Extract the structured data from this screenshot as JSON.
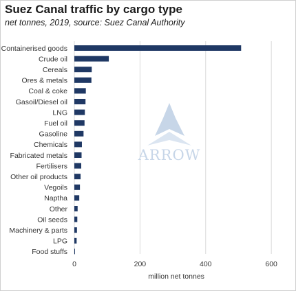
{
  "title": "Suez Canal traffic by cargo type",
  "subtitle": "net tonnes, 2019, source: Suez Canal Authority",
  "watermark": "ARROW",
  "colors": {
    "bar": "#1f3864",
    "grid": "#d9d9d9",
    "watermark": "#c7d6e8"
  },
  "chart_data": {
    "type": "bar",
    "orientation": "horizontal",
    "title": "Suez Canal traffic by cargo type",
    "subtitle": "net tonnes, 2019, source: Suez Canal Authority",
    "xlabel": "million net tonnes",
    "ylabel": "",
    "xlim": [
      0,
      650
    ],
    "xticks": [
      0,
      200,
      400,
      600
    ],
    "grid": true,
    "legend": "none",
    "categories": [
      "Containerised goods",
      "Crude oil",
      "Cereals",
      "Ores & metals",
      "Coal & coke",
      "Gasoil/Diesel oil",
      "LNG",
      "Fuel oil",
      "Gasoline",
      "Chemicals",
      "Fabricated metals",
      "Fertilisers",
      "Other oil products",
      "Vegoils",
      "Naptha",
      "Other",
      "Oil seeds",
      "Machinery & parts",
      "LPG",
      "Food stuffs"
    ],
    "values": [
      508,
      105,
      53,
      52,
      35,
      34,
      32,
      31,
      28,
      23,
      22,
      21,
      19,
      17,
      15,
      10,
      9,
      8,
      7,
      1
    ]
  }
}
